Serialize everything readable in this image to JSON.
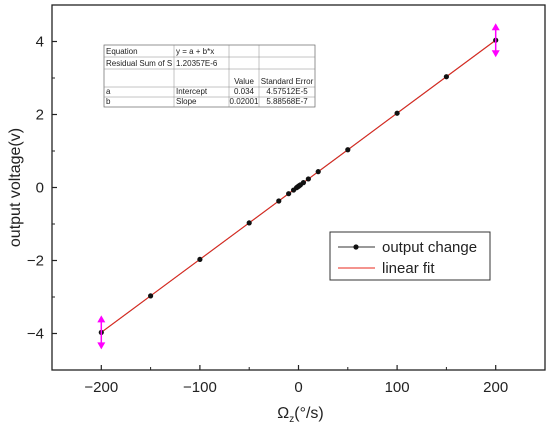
{
  "chart_data": {
    "type": "scatter",
    "xlabel": "Ω",
    "xlabel_sub": "z",
    "xlabel_unit": "(°/s)",
    "ylabel": "output voltage(v)",
    "xlim": [
      -250,
      250
    ],
    "ylim": [
      -5,
      5
    ],
    "xticks": [
      -200,
      -100,
      0,
      100,
      200
    ],
    "xtick_labels": [
      "−200",
      "−100",
      "0",
      "100",
      "200"
    ],
    "yticks": [
      -4,
      -2,
      0,
      2,
      4
    ],
    "ytick_labels": [
      "−4",
      "−2",
      "0",
      "2",
      "4"
    ],
    "grid": false,
    "legend_position": "lower-right",
    "series": [
      {
        "name": "output change",
        "kind": "line+marker",
        "color": "#333333",
        "x": [
          -200,
          -150,
          -100,
          -50,
          -20,
          -10,
          -5,
          -2,
          -1,
          0,
          1,
          2,
          5,
          10,
          20,
          50,
          100,
          150,
          200
        ],
        "y": [
          -3.97,
          -2.97,
          -1.97,
          -0.97,
          -0.37,
          -0.17,
          -0.07,
          -0.006,
          0.014,
          0.034,
          0.054,
          0.074,
          0.134,
          0.234,
          0.434,
          1.034,
          2.035,
          3.035,
          4.035
        ]
      },
      {
        "name": "linear fit",
        "kind": "line",
        "color": "#e8281e",
        "x": [
          -200,
          200
        ],
        "y": [
          -3.968,
          4.036
        ]
      }
    ],
    "error_markers": [
      {
        "x": -200,
        "y": -3.97,
        "color": "#ff00ff"
      },
      {
        "x": 200,
        "y": 4.035,
        "color": "#ff00ff"
      }
    ],
    "fit_table": {
      "rows": [
        [
          "Equation",
          "y = a + b*x",
          "",
          ""
        ],
        [
          "Residual Sum of S",
          "1.20357E-6",
          "",
          ""
        ],
        [
          "",
          "",
          "Value",
          "Standard Error"
        ],
        [
          "a",
          "Intercept",
          "0.034",
          "4.57512E-5"
        ],
        [
          "b",
          "Slope",
          "0.02001",
          "5.88568E-7"
        ]
      ]
    }
  }
}
